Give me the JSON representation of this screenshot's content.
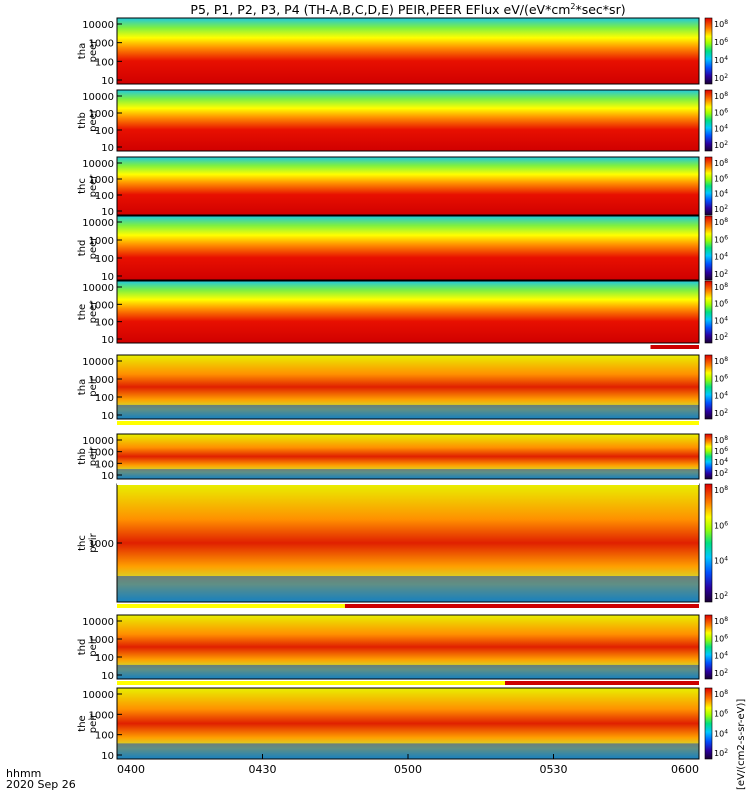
{
  "chart_data": {
    "type": "heatmap",
    "title": "P5, P1, P2, P3, P4 (TH-A,B,C,D,E) PEIR,PEER EFlux eV/(eV*cm",
    "title_sup": "2",
    "title_tail": "*sec*sr)",
    "x_time_label": "hhmm",
    "x_date_label": "2020 Sep 26",
    "x_ticks": [
      "0400",
      "0430",
      "0500",
      "0530",
      "0600"
    ],
    "x_range": [
      "0400",
      "0600"
    ],
    "colorbar_unit": "[eV/(cm2-s-sr-eV)]",
    "panels": [
      {
        "probe": "tha",
        "species": "peer",
        "yticks": [
          "10",
          "100",
          "1000",
          "10000"
        ],
        "cbar_ticks": [
          "10^2",
          "10^4",
          "10^6",
          "10^8"
        ]
      },
      {
        "probe": "thb",
        "species": "peer",
        "yticks": [
          "10",
          "100",
          "1000",
          "10000"
        ],
        "cbar_ticks": [
          "10^2",
          "10^4",
          "10^6",
          "10^8"
        ]
      },
      {
        "probe": "thc",
        "species": "peer",
        "yticks": [
          "10",
          "100",
          "1000",
          "10000"
        ],
        "cbar_ticks": [
          "10^2",
          "10^4",
          "10^6",
          "10^8"
        ]
      },
      {
        "probe": "thd",
        "species": "peer",
        "yticks": [
          "10",
          "100",
          "1000",
          "10000"
        ],
        "cbar_ticks": [
          "10^2",
          "10^4",
          "10^6",
          "10^8"
        ]
      },
      {
        "probe": "the",
        "species": "peer",
        "yticks": [
          "10",
          "100",
          "1000",
          "10000"
        ],
        "cbar_ticks": [
          "10^2",
          "10^4",
          "10^6",
          "10^8"
        ]
      },
      {
        "probe": "tha",
        "species": "peir",
        "yticks": [
          "10",
          "100",
          "1000",
          "10000"
        ],
        "cbar_ticks": [
          "10^2",
          "10^4",
          "10^6",
          "10^8"
        ]
      },
      {
        "probe": "thb",
        "species": "peir",
        "yticks": [
          "10",
          "100",
          "1000",
          "10000"
        ],
        "cbar_ticks": [
          "10^2",
          "10^4",
          "10^6",
          "10^8"
        ]
      },
      {
        "probe": "thc",
        "species": "peir",
        "yticks": [
          "1000"
        ],
        "cbar_ticks": [
          "10^2",
          "10^4",
          "10^6",
          "10^8"
        ]
      },
      {
        "probe": "thd",
        "species": "peir",
        "yticks": [
          "10",
          "100",
          "1000",
          "10000"
        ],
        "cbar_ticks": [
          "10^2",
          "10^4",
          "10^6",
          "10^8"
        ]
      },
      {
        "probe": "the",
        "species": "peir",
        "yticks": [
          "10",
          "100",
          "1000",
          "10000"
        ],
        "cbar_ticks": [
          "10^2",
          "10^4",
          "10^6",
          "10^8"
        ]
      }
    ],
    "mode_bars": [
      {
        "after_panel": 5,
        "segments": [
          {
            "from": "0400",
            "to": "0550",
            "color": "#ffffff"
          },
          {
            "from": "0550",
            "to": "0600",
            "color": "#cc0000"
          }
        ]
      },
      {
        "after_panel": 6,
        "segments": [
          {
            "from": "0400",
            "to": "0600",
            "color": "#ffff00"
          }
        ]
      },
      {
        "after_panel": 7,
        "segments": [
          {
            "from": "0400",
            "to": "0600",
            "color": "#ffffff"
          }
        ]
      },
      {
        "after_panel": 8,
        "segments": [
          {
            "from": "0400",
            "to": "0447",
            "color": "#ffff00"
          },
          {
            "from": "0447",
            "to": "0600",
            "color": "#cc0000"
          }
        ]
      },
      {
        "after_panel": 9,
        "segments": [
          {
            "from": "0400",
            "to": "0520",
            "color": "#ffff00"
          },
          {
            "from": "0520",
            "to": "0600",
            "color": "#cc0000"
          }
        ]
      }
    ]
  }
}
